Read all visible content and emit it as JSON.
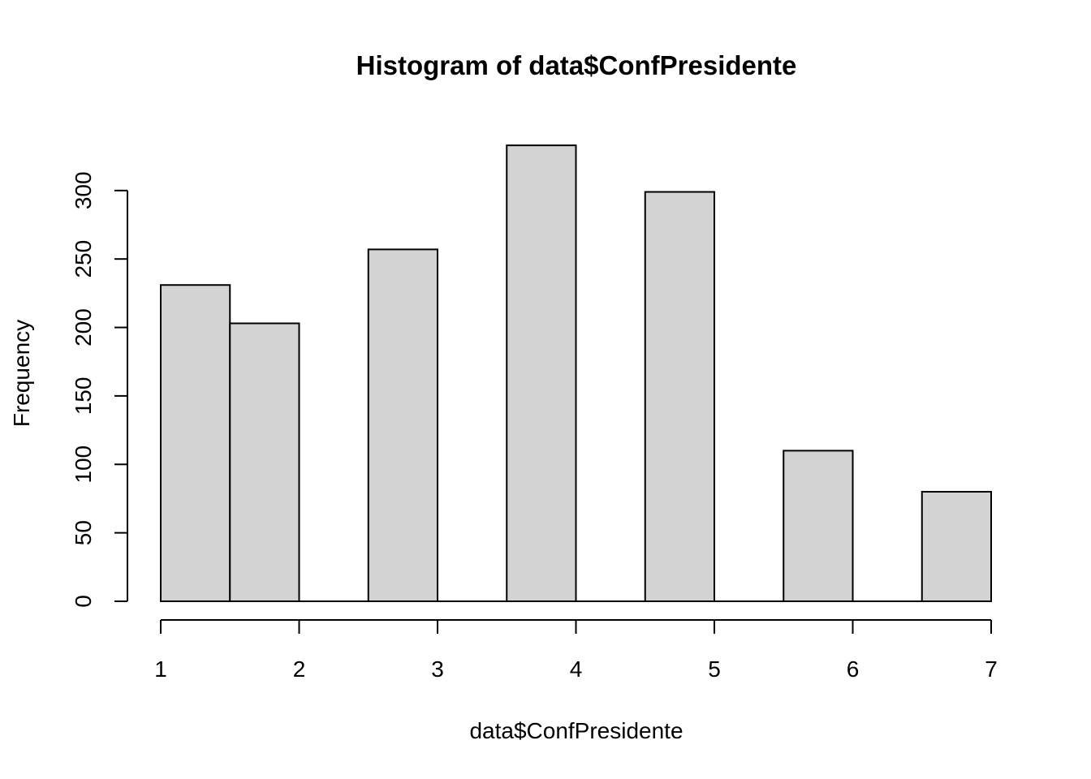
{
  "chart_data": {
    "type": "bar",
    "title": "Histogram of data$ConfPresidente",
    "xlabel": "data$ConfPresidente",
    "ylabel": "Frequency",
    "bins": [
      {
        "start": 1.0,
        "end": 1.5,
        "count": 231
      },
      {
        "start": 1.5,
        "end": 2.0,
        "count": 203
      },
      {
        "start": 2.0,
        "end": 2.5,
        "count": 0
      },
      {
        "start": 2.5,
        "end": 3.0,
        "count": 257
      },
      {
        "start": 3.0,
        "end": 3.5,
        "count": 0
      },
      {
        "start": 3.5,
        "end": 4.0,
        "count": 333
      },
      {
        "start": 4.0,
        "end": 4.5,
        "count": 0
      },
      {
        "start": 4.5,
        "end": 5.0,
        "count": 299
      },
      {
        "start": 5.0,
        "end": 5.5,
        "count": 0
      },
      {
        "start": 5.5,
        "end": 6.0,
        "count": 110
      },
      {
        "start": 6.0,
        "end": 6.5,
        "count": 0
      },
      {
        "start": 6.5,
        "end": 7.0,
        "count": 80
      }
    ],
    "xlim": [
      1,
      7
    ],
    "ylim": [
      0,
      333
    ],
    "x_ticks": [
      "1",
      "2",
      "3",
      "4",
      "5",
      "6",
      "7"
    ],
    "y_ticks": [
      "0",
      "50",
      "100",
      "150",
      "200",
      "250",
      "300"
    ],
    "bar_color": "#d3d3d3",
    "grid": false
  }
}
